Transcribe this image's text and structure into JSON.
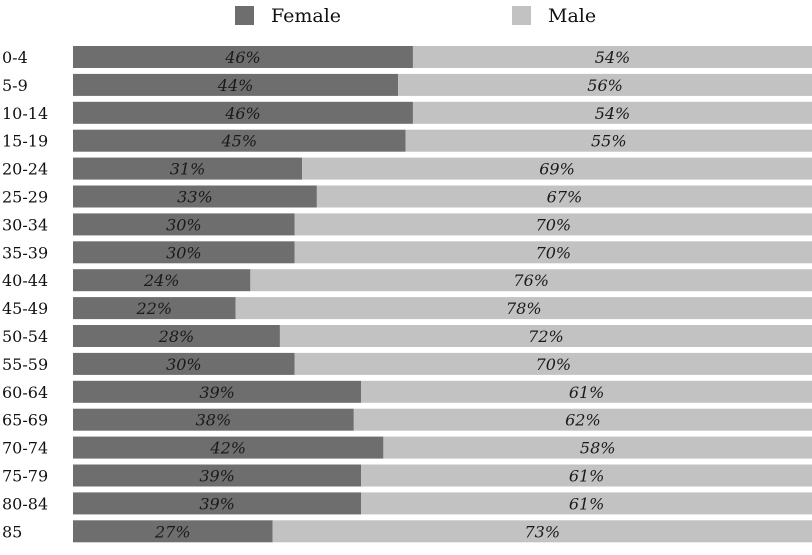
{
  "chart_data": {
    "type": "bar",
    "orientation": "horizontal",
    "stacked": "percent",
    "categories": [
      "0-4",
      "5-9",
      "10-14",
      "15-19",
      "20-24",
      "25-29",
      "30-34",
      "35-39",
      "40-44",
      "45-49",
      "50-54",
      "55-59",
      "60-64",
      "65-69",
      "70-74",
      "75-79",
      "80-84",
      "85"
    ],
    "series": [
      {
        "name": "Female",
        "color": "#6e6e6e",
        "values": [
          46,
          44,
          46,
          45,
          31,
          33,
          30,
          30,
          24,
          22,
          28,
          30,
          39,
          38,
          42,
          39,
          39,
          27
        ],
        "labels": [
          "46%",
          "44%",
          "46%",
          "45%",
          "31%",
          "33%",
          "30%",
          "30%",
          "24%",
          "22%",
          "28%",
          "30%",
          "39%",
          "38%",
          "42%",
          "39%",
          "39%",
          "27%"
        ]
      },
      {
        "name": "Male",
        "color": "#c2c2c2",
        "values": [
          54,
          56,
          54,
          55,
          69,
          67,
          70,
          70,
          76,
          78,
          72,
          70,
          61,
          62,
          58,
          61,
          61,
          73
        ],
        "labels": [
          "54%",
          "56%",
          "54%",
          "55%",
          "69%",
          "67%",
          "70%",
          "70%",
          "76%",
          "78%",
          "72%",
          "70%",
          "61%",
          "62%",
          "58%",
          "61%",
          "61%",
          "73%"
        ]
      }
    ],
    "xlim": [
      0,
      100
    ],
    "legend_position": "top",
    "grid": false
  }
}
